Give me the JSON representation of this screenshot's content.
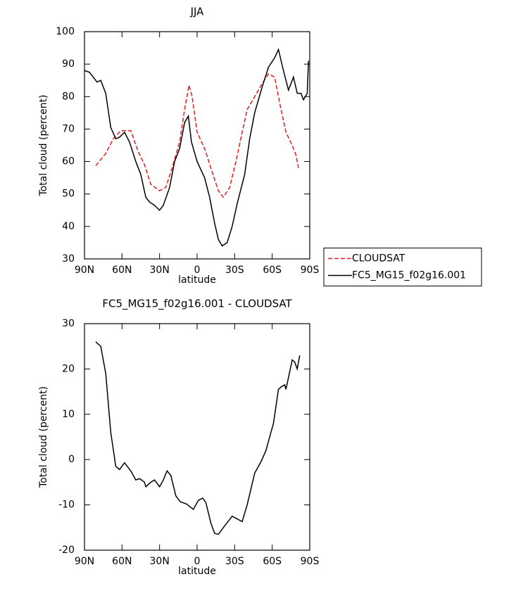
{
  "chart_data": [
    {
      "type": "line",
      "title": "JJA",
      "xlabel": "latitude",
      "ylabel": "Total cloud (percent)",
      "xlim": [
        90,
        -90
      ],
      "xticks": [
        {
          "value": 90,
          "label": "90N"
        },
        {
          "value": 60,
          "label": "60N"
        },
        {
          "value": 30,
          "label": "30N"
        },
        0,
        {
          "value": -30,
          "label": "30S"
        },
        {
          "value": -60,
          "label": "60S"
        },
        {
          "value": -90,
          "label": "90S"
        }
      ],
      "ylim": [
        30,
        100
      ],
      "yticks": [
        30,
        40,
        50,
        60,
        70,
        80,
        90,
        100
      ],
      "legend": "right",
      "series": [
        {
          "name": "CLOUDSAT",
          "color": "#e41a1c",
          "dash": true,
          "x": [
            81,
            73,
            67,
            61,
            53,
            47,
            42,
            37,
            30,
            25,
            20,
            14,
            10,
            6.5,
            4,
            0,
            -6,
            -11,
            -17,
            -21,
            -26,
            -31,
            -36,
            -40,
            -46,
            -52,
            -57,
            -62,
            -66,
            -71,
            -76,
            -79,
            -81
          ],
          "values": [
            58.7,
            62.5,
            67,
            69.5,
            69.5,
            63,
            59,
            53,
            51,
            52,
            58,
            66,
            76,
            83.5,
            80,
            69,
            64,
            58,
            51,
            49,
            52,
            60,
            69,
            76,
            80,
            84,
            87,
            86,
            78,
            69,
            65,
            62,
            58
          ]
        },
        {
          "name": "FC5_MG15_f02g16.001",
          "color": "#000000",
          "dash": false,
          "x": [
            90,
            86,
            80,
            77,
            73,
            69,
            65,
            62,
            58,
            54,
            49,
            45,
            41,
            38,
            34,
            30,
            27,
            22,
            18,
            14,
            10,
            7,
            4.5,
            0,
            -6,
            -10,
            -14,
            -17,
            -20,
            -24,
            -28,
            -32,
            -38,
            -42,
            -46,
            -52,
            -57,
            -62,
            -65,
            -69,
            -73,
            -77,
            -80,
            -83,
            -85,
            -88,
            -89
          ],
          "values": [
            88,
            87.5,
            84.5,
            85,
            81,
            70.5,
            67,
            67.5,
            69,
            66,
            60,
            56,
            49,
            47.5,
            46.5,
            45,
            46.5,
            52,
            60,
            64,
            72,
            74,
            66,
            60,
            55,
            49,
            41,
            36,
            34,
            35,
            40,
            47,
            56,
            67,
            75,
            83,
            89,
            92,
            94.5,
            88,
            82,
            86,
            81,
            81,
            79,
            81,
            91
          ]
        }
      ]
    },
    {
      "type": "line",
      "title": "FC5_MG15_f02g16.001 - CLOUDSAT",
      "xlabel": "latitude",
      "ylabel": "Total cloud (percent)",
      "xlim": [
        90,
        -90
      ],
      "xticks": [
        {
          "value": 90,
          "label": "90N"
        },
        {
          "value": 60,
          "label": "60N"
        },
        {
          "value": 30,
          "label": "30N"
        },
        0,
        {
          "value": -30,
          "label": "30S"
        },
        {
          "value": -60,
          "label": "60S"
        },
        {
          "value": -90,
          "label": "90S"
        }
      ],
      "ylim": [
        -20,
        30
      ],
      "yticks": [
        -20,
        -10,
        0,
        10,
        20,
        30
      ],
      "series": [
        {
          "color": "#000000",
          "dash": false,
          "x": [
            81,
            77,
            73,
            69,
            65,
            62,
            58,
            53,
            49,
            46,
            42,
            41,
            37,
            34,
            30,
            27,
            24,
            21,
            17,
            13.5,
            8.5,
            3,
            -1,
            -4.5,
            -7,
            -11,
            -14,
            -17,
            -21,
            -28,
            -36,
            -40,
            -46,
            -51,
            -55,
            -61,
            -65,
            -67,
            -70,
            -71,
            -76,
            -78,
            -80,
            -82
          ],
          "values": [
            26,
            25,
            19,
            6,
            -1.5,
            -2.2,
            -0.7,
            -2.5,
            -4.5,
            -4.2,
            -5,
            -6,
            -5,
            -4.5,
            -6,
            -4.5,
            -2.5,
            -3.5,
            -8,
            -9.3,
            -9.8,
            -11,
            -9,
            -8.5,
            -9.5,
            -14,
            -16.3,
            -16.5,
            -15,
            -12.5,
            -13.7,
            -10,
            -3,
            -0.5,
            2,
            8,
            15.5,
            16,
            16.5,
            15.5,
            22,
            21.5,
            20,
            23
          ]
        }
      ]
    }
  ]
}
